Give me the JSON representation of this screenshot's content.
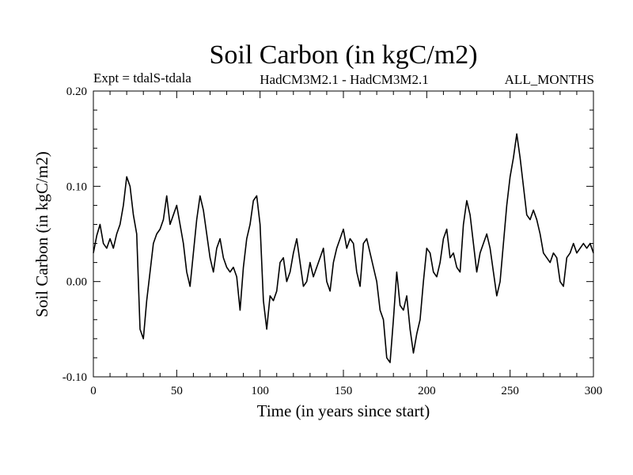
{
  "chart_data": {
    "type": "line",
    "title": "Soil Carbon (in kgC/m2)",
    "subtitle_left": "Expt = tdalS-tdala",
    "subtitle_center": "HadCM3M2.1 - HadCM3M2.1",
    "subtitle_right": "ALL_MONTHS",
    "xlabel": "Time (in years since start)",
    "ylabel": "Soil Carbon (in kgC/m2)",
    "xlim": [
      0,
      300
    ],
    "ylim": [
      -0.1,
      0.2
    ],
    "xticks": [
      0,
      50,
      100,
      150,
      200,
      250,
      300
    ],
    "xtick_labels": [
      "0",
      "50",
      "100",
      "150",
      "200",
      "250",
      "300"
    ],
    "yticks": [
      -0.1,
      0.0,
      0.1,
      0.2
    ],
    "ytick_labels": [
      "-0.10",
      "0.00",
      "0.10",
      "0.20"
    ],
    "grid": false,
    "series": [
      {
        "name": "Soil Carbon",
        "x": [
          0,
          2,
          4,
          6,
          8,
          10,
          12,
          14,
          16,
          18,
          20,
          22,
          24,
          26,
          28,
          30,
          32,
          34,
          36,
          38,
          40,
          42,
          44,
          46,
          48,
          50,
          52,
          54,
          56,
          58,
          60,
          62,
          64,
          66,
          68,
          70,
          72,
          74,
          76,
          78,
          80,
          82,
          84,
          86,
          88,
          90,
          92,
          94,
          96,
          98,
          100,
          102,
          104,
          106,
          108,
          110,
          112,
          114,
          116,
          118,
          120,
          122,
          124,
          126,
          128,
          130,
          132,
          134,
          136,
          138,
          140,
          142,
          144,
          146,
          148,
          150,
          152,
          154,
          156,
          158,
          160,
          162,
          164,
          166,
          168,
          170,
          172,
          174,
          176,
          178,
          180,
          182,
          184,
          186,
          188,
          190,
          192,
          194,
          196,
          198,
          200,
          202,
          204,
          206,
          208,
          210,
          212,
          214,
          216,
          218,
          220,
          222,
          224,
          226,
          228,
          230,
          232,
          234,
          236,
          238,
          240,
          242,
          244,
          246,
          248,
          250,
          252,
          254,
          256,
          258,
          260,
          262,
          264,
          266,
          268,
          270,
          272,
          274,
          276,
          278,
          280,
          282,
          284,
          286,
          288,
          290,
          292,
          294,
          296,
          298,
          300
        ],
        "y": [
          0.03,
          0.048,
          0.06,
          0.04,
          0.035,
          0.045,
          0.035,
          0.05,
          0.06,
          0.08,
          0.11,
          0.1,
          0.07,
          0.05,
          -0.05,
          -0.06,
          -0.02,
          0.01,
          0.04,
          0.05,
          0.055,
          0.065,
          0.09,
          0.06,
          0.07,
          0.08,
          0.06,
          0.04,
          0.01,
          -0.005,
          0.03,
          0.065,
          0.09,
          0.075,
          0.05,
          0.025,
          0.01,
          0.035,
          0.045,
          0.025,
          0.015,
          0.01,
          0.015,
          0.005,
          -0.03,
          0.015,
          0.045,
          0.06,
          0.085,
          0.09,
          0.06,
          -0.02,
          -0.05,
          -0.015,
          -0.02,
          -0.01,
          0.02,
          0.025,
          0.0,
          0.01,
          0.03,
          0.045,
          0.02,
          -0.005,
          0.0,
          0.02,
          0.005,
          0.015,
          0.025,
          0.035,
          0.0,
          -0.01,
          0.02,
          0.035,
          0.045,
          0.055,
          0.035,
          0.045,
          0.04,
          0.01,
          -0.005,
          0.04,
          0.045,
          0.03,
          0.015,
          0.0,
          -0.03,
          -0.04,
          -0.08,
          -0.085,
          -0.04,
          0.01,
          -0.025,
          -0.03,
          -0.015,
          -0.05,
          -0.075,
          -0.055,
          -0.04,
          0.0,
          0.035,
          0.03,
          0.01,
          0.005,
          0.02,
          0.045,
          0.055,
          0.025,
          0.03,
          0.015,
          0.01,
          0.06,
          0.085,
          0.07,
          0.04,
          0.01,
          0.03,
          0.04,
          0.05,
          0.035,
          0.01,
          -0.015,
          0.0,
          0.04,
          0.08,
          0.11,
          0.13,
          0.155,
          0.13,
          0.1,
          0.07,
          0.065,
          0.075,
          0.065,
          0.05,
          0.03,
          0.025,
          0.02,
          0.03,
          0.025,
          0.0,
          -0.005,
          0.025,
          0.03,
          0.04,
          0.03,
          0.035,
          0.04,
          0.035,
          0.04,
          0.03
        ]
      }
    ]
  },
  "colors": {
    "background": "#ffffff",
    "foreground": "#000000",
    "line": "#000000"
  }
}
